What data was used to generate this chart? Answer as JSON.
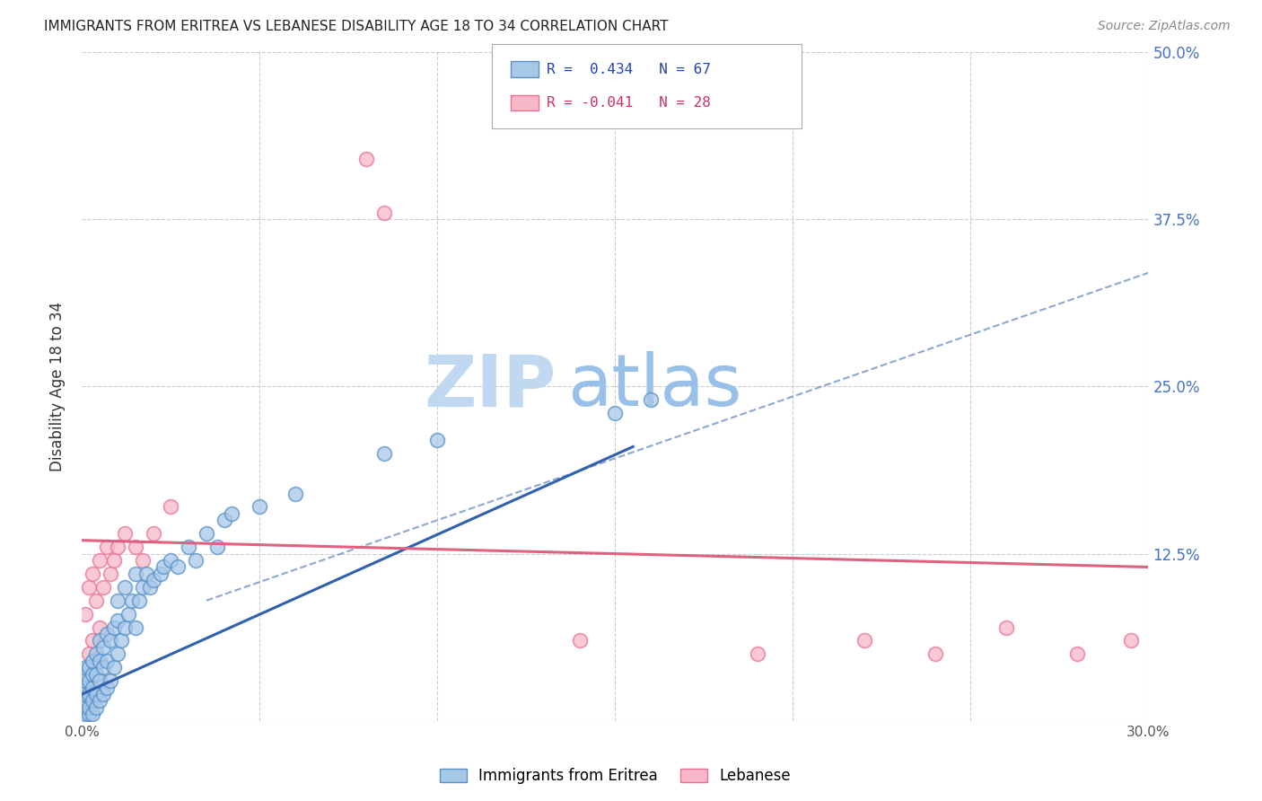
{
  "title": "IMMIGRANTS FROM ERITREA VS LEBANESE DISABILITY AGE 18 TO 34 CORRELATION CHART",
  "source": "Source: ZipAtlas.com",
  "ylabel": "Disability Age 18 to 34",
  "xlim": [
    0.0,
    0.3
  ],
  "ylim": [
    0.0,
    0.5
  ],
  "series1_label": "Immigrants from Eritrea",
  "series1_R": 0.434,
  "series1_N": 67,
  "series1_color": "#a8c8e8",
  "series1_edge_color": "#5590c8",
  "series1_line_color": "#3060b0",
  "series2_label": "Lebanese",
  "series2_R": -0.041,
  "series2_N": 28,
  "series2_color": "#f8b8c8",
  "series2_edge_color": "#e87090",
  "series2_line_color": "#e06080",
  "background_color": "#ffffff",
  "grid_color": "#cccccc",
  "title_color": "#222222",
  "right_tick_color": "#4472c4",
  "watermark_zip_color": "#c0d8f0",
  "watermark_atlas_color": "#98c0e8",
  "series1_x": [
    0.001,
    0.001,
    0.001,
    0.001,
    0.001,
    0.001,
    0.001,
    0.001,
    0.002,
    0.002,
    0.002,
    0.002,
    0.002,
    0.003,
    0.003,
    0.003,
    0.003,
    0.003,
    0.004,
    0.004,
    0.004,
    0.004,
    0.005,
    0.005,
    0.005,
    0.005,
    0.006,
    0.006,
    0.006,
    0.007,
    0.007,
    0.007,
    0.008,
    0.008,
    0.009,
    0.009,
    0.01,
    0.01,
    0.01,
    0.011,
    0.012,
    0.012,
    0.013,
    0.014,
    0.015,
    0.015,
    0.016,
    0.017,
    0.018,
    0.019,
    0.02,
    0.022,
    0.023,
    0.025,
    0.027,
    0.03,
    0.032,
    0.035,
    0.038,
    0.04,
    0.042,
    0.05,
    0.06,
    0.085,
    0.1,
    0.15,
    0.16
  ],
  "series1_y": [
    0.005,
    0.01,
    0.015,
    0.02,
    0.025,
    0.03,
    0.035,
    0.04,
    0.005,
    0.01,
    0.02,
    0.03,
    0.04,
    0.005,
    0.015,
    0.025,
    0.035,
    0.045,
    0.01,
    0.02,
    0.035,
    0.05,
    0.015,
    0.03,
    0.045,
    0.06,
    0.02,
    0.04,
    0.055,
    0.025,
    0.045,
    0.065,
    0.03,
    0.06,
    0.04,
    0.07,
    0.05,
    0.075,
    0.09,
    0.06,
    0.07,
    0.1,
    0.08,
    0.09,
    0.07,
    0.11,
    0.09,
    0.1,
    0.11,
    0.1,
    0.105,
    0.11,
    0.115,
    0.12,
    0.115,
    0.13,
    0.12,
    0.14,
    0.13,
    0.15,
    0.155,
    0.16,
    0.17,
    0.2,
    0.21,
    0.23,
    0.24
  ],
  "series2_x": [
    0.001,
    0.001,
    0.002,
    0.002,
    0.003,
    0.003,
    0.004,
    0.005,
    0.005,
    0.006,
    0.007,
    0.008,
    0.009,
    0.01,
    0.012,
    0.015,
    0.017,
    0.02,
    0.025,
    0.08,
    0.085,
    0.14,
    0.19,
    0.22,
    0.24,
    0.26,
    0.28,
    0.295
  ],
  "series2_y": [
    0.01,
    0.08,
    0.05,
    0.1,
    0.06,
    0.11,
    0.09,
    0.07,
    0.12,
    0.1,
    0.13,
    0.11,
    0.12,
    0.13,
    0.14,
    0.13,
    0.12,
    0.14,
    0.16,
    0.42,
    0.38,
    0.06,
    0.05,
    0.06,
    0.05,
    0.07,
    0.05,
    0.06
  ],
  "line1_x0": 0.0,
  "line1_y0": 0.02,
  "line1_x1": 0.155,
  "line1_y1": 0.205,
  "line1_dash_x0": 0.035,
  "line1_dash_y0": 0.09,
  "line1_dash_x1": 0.3,
  "line1_dash_y1": 0.335,
  "line2_x0": 0.0,
  "line2_y0": 0.135,
  "line2_x1": 0.3,
  "line2_y1": 0.115
}
